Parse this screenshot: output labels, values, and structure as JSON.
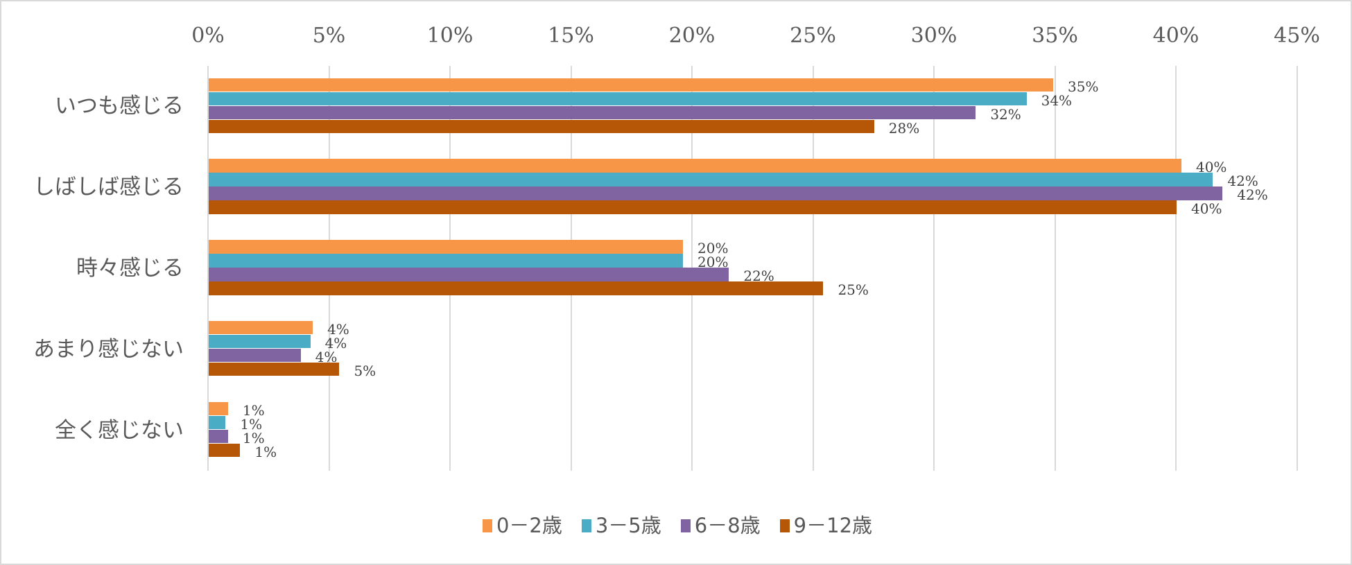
{
  "chart_data": {
    "type": "bar",
    "orientation": "horizontal",
    "title": "",
    "xlabel": "",
    "ylabel": "",
    "xlim": [
      0,
      45
    ],
    "x_ticks": [
      "0%",
      "5%",
      "10%",
      "15%",
      "20%",
      "25%",
      "30%",
      "35%",
      "40%",
      "45%"
    ],
    "axis_position": "top",
    "grid": true,
    "legend_position": "bottom",
    "categories": [
      "いつも感じる",
      "しばしば感じる",
      "時々感じる",
      "あまり感じない",
      "全く感じない"
    ],
    "series": [
      {
        "name": "0－2歳",
        "color": "#F79646",
        "values": [
          34.9,
          40.2,
          19.6,
          4.3,
          0.8
        ],
        "labels": [
          "35%",
          "40%",
          "20%",
          "4%",
          "1%"
        ]
      },
      {
        "name": "3－5歳",
        "color": "#4BACC6",
        "values": [
          33.8,
          41.5,
          19.6,
          4.2,
          0.7
        ],
        "labels": [
          "34%",
          "42%",
          "20%",
          "4%",
          "1%"
        ]
      },
      {
        "name": "6－8歳",
        "color": "#8064A2",
        "values": [
          31.7,
          41.9,
          21.5,
          3.8,
          0.8
        ],
        "labels": [
          "32%",
          "42%",
          "22%",
          "4%",
          "1%"
        ]
      },
      {
        "name": "9－12歳",
        "color": "#B65708",
        "values": [
          27.5,
          40.0,
          25.4,
          5.4,
          1.3
        ],
        "labels": [
          "28%",
          "40%",
          "25%",
          "5%",
          "1%"
        ]
      }
    ]
  }
}
